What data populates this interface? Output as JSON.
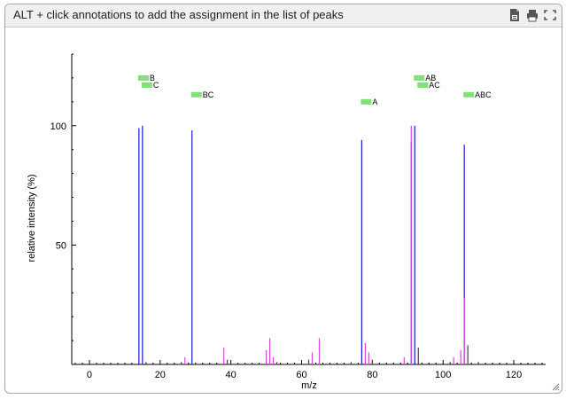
{
  "header": {
    "title": "ALT + click annotations to add the assignment in the list of peaks",
    "icons": [
      "export-pdf-icon",
      "print-icon",
      "fullscreen-icon"
    ]
  },
  "colors": {
    "main_peaks": "#1a1ad0",
    "minor_peaks": "#d84bd8",
    "annotation_bar": "#82e07a"
  },
  "chart_data": {
    "type": "bar",
    "title": "",
    "xlabel": "m/z",
    "ylabel": "relative intensity (%)",
    "xlim": [
      -5,
      129
    ],
    "ylim": [
      0,
      130
    ],
    "x_ticks": [
      0,
      20,
      40,
      60,
      80,
      100,
      120
    ],
    "y_ticks": [
      50,
      100
    ],
    "series": [
      {
        "color": "#1a1ad0",
        "x": [
          14,
          15,
          29,
          77,
          91,
          92,
          106
        ],
        "y": [
          99,
          100,
          98,
          94,
          93,
          100,
          92
        ]
      },
      {
        "color": "#d84bd8",
        "x": [
          27,
          38,
          50,
          51,
          52,
          63,
          65,
          78,
          79,
          89,
          91,
          103,
          105,
          106
        ],
        "y": [
          3,
          7,
          6,
          11,
          3,
          5,
          11,
          9,
          5,
          3,
          100,
          3,
          6,
          28
        ]
      },
      {
        "color": "#444444",
        "x": [
          16,
          26,
          39,
          53,
          62,
          74,
          80,
          93,
          102,
          107,
          110
        ],
        "y": [
          1,
          1,
          2,
          1,
          2,
          1,
          2,
          7,
          1,
          8,
          1
        ]
      }
    ],
    "annotations": [
      {
        "label": "B",
        "x": 14,
        "y": 120
      },
      {
        "label": "C",
        "x": 15,
        "y": 117
      },
      {
        "label": "BC",
        "x": 29,
        "y": 113
      },
      {
        "label": "A",
        "x": 77,
        "y": 110
      },
      {
        "label": "AB",
        "x": 92,
        "y": 120
      },
      {
        "label": "AC",
        "x": 93,
        "y": 117
      },
      {
        "label": "ABC",
        "x": 106,
        "y": 113
      }
    ]
  }
}
